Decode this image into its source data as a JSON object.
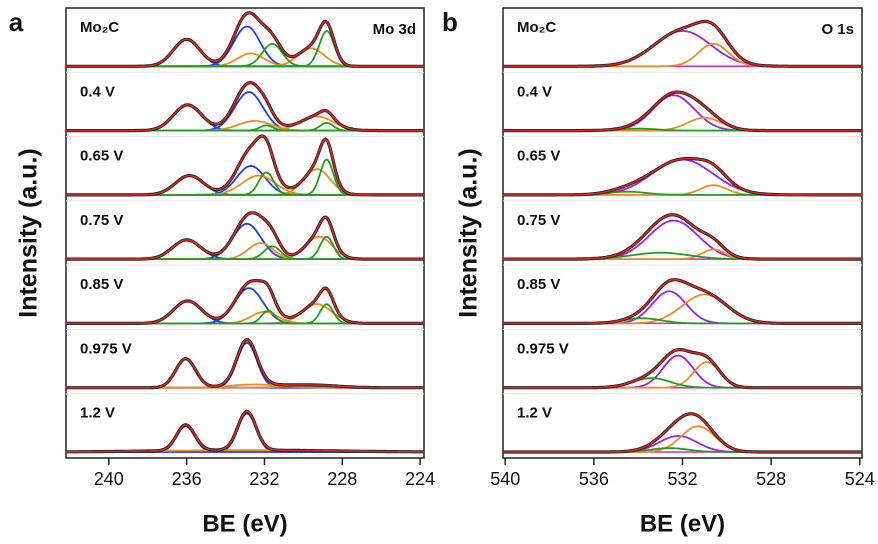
{
  "chart_data": [
    {
      "type": "xps",
      "panel_label": "a",
      "region": "Mo 3d",
      "x_label": "BE (eV)",
      "y_label": "Intensity (a.u.)",
      "xlim": [
        242.2,
        223.8
      ],
      "xticks": [
        240,
        236,
        232,
        228,
        224
      ],
      "spectra": [
        {
          "label": "Mo₂C",
          "peaks": [
            {
              "color": "#1f3fff",
              "center": 232.9,
              "fwhm": 1.6,
              "height": 0.62
            },
            {
              "color": "#1f3fff",
              "center": 236.0,
              "fwhm": 1.6,
              "height": 0.42
            },
            {
              "color": "#f08c1e",
              "center": 229.6,
              "fwhm": 1.6,
              "height": 0.28
            },
            {
              "color": "#f08c1e",
              "center": 232.7,
              "fwhm": 1.6,
              "height": 0.2
            },
            {
              "color": "#1ea01e",
              "center": 228.8,
              "fwhm": 0.9,
              "height": 0.55
            },
            {
              "color": "#1ea01e",
              "center": 231.6,
              "fwhm": 1.2,
              "height": 0.35
            }
          ]
        },
        {
          "label": "0.4 V",
          "peaks": [
            {
              "color": "#1f3fff",
              "center": 232.8,
              "fwhm": 1.7,
              "height": 0.6
            },
            {
              "color": "#1f3fff",
              "center": 235.95,
              "fwhm": 1.7,
              "height": 0.4
            },
            {
              "color": "#f08c1e",
              "center": 232.5,
              "fwhm": 2.0,
              "height": 0.15
            },
            {
              "color": "#f08c1e",
              "center": 229.3,
              "fwhm": 2.0,
              "height": 0.22
            },
            {
              "color": "#1ea01e",
              "center": 228.8,
              "fwhm": 0.8,
              "height": 0.12
            },
            {
              "color": "#1ea01e",
              "center": 231.9,
              "fwhm": 0.8,
              "height": 0.08
            }
          ]
        },
        {
          "label": "0.65 V",
          "peaks": [
            {
              "color": "#1f3fff",
              "center": 232.7,
              "fwhm": 1.7,
              "height": 0.45
            },
            {
              "color": "#1f3fff",
              "center": 235.85,
              "fwhm": 1.7,
              "height": 0.3
            },
            {
              "color": "#f08c1e",
              "center": 232.3,
              "fwhm": 2.0,
              "height": 0.3
            },
            {
              "color": "#f08c1e",
              "center": 229.3,
              "fwhm": 1.6,
              "height": 0.4
            },
            {
              "color": "#1ea01e",
              "center": 228.8,
              "fwhm": 0.8,
              "height": 0.55
            },
            {
              "color": "#1ea01e",
              "center": 231.9,
              "fwhm": 0.9,
              "height": 0.35
            }
          ]
        },
        {
          "label": "0.75 V",
          "peaks": [
            {
              "color": "#1f3fff",
              "center": 232.9,
              "fwhm": 1.7,
              "height": 0.55
            },
            {
              "color": "#1f3fff",
              "center": 236.0,
              "fwhm": 1.7,
              "height": 0.3
            },
            {
              "color": "#f08c1e",
              "center": 232.2,
              "fwhm": 1.5,
              "height": 0.25
            },
            {
              "color": "#f08c1e",
              "center": 229.2,
              "fwhm": 1.6,
              "height": 0.35
            },
            {
              "color": "#1ea01e",
              "center": 228.8,
              "fwhm": 0.8,
              "height": 0.35
            },
            {
              "color": "#1ea01e",
              "center": 231.6,
              "fwhm": 1.0,
              "height": 0.2
            }
          ]
        },
        {
          "label": "0.85 V",
          "peaks": [
            {
              "color": "#1f3fff",
              "center": 232.8,
              "fwhm": 1.7,
              "height": 0.55
            },
            {
              "color": "#1f3fff",
              "center": 235.95,
              "fwhm": 1.7,
              "height": 0.35
            },
            {
              "color": "#f08c1e",
              "center": 232.0,
              "fwhm": 1.6,
              "height": 0.18
            },
            {
              "color": "#f08c1e",
              "center": 229.3,
              "fwhm": 1.8,
              "height": 0.3
            },
            {
              "color": "#1ea01e",
              "center": 228.8,
              "fwhm": 0.8,
              "height": 0.3
            },
            {
              "color": "#1ea01e",
              "center": 231.8,
              "fwhm": 0.8,
              "height": 0.2
            }
          ]
        },
        {
          "label": "0.975 V",
          "peaks": [
            {
              "color": "#1f3fff",
              "center": 232.9,
              "fwhm": 1.2,
              "height": 0.7
            },
            {
              "color": "#1f3fff",
              "center": 236.05,
              "fwhm": 1.2,
              "height": 0.45
            },
            {
              "color": "#f08c1e",
              "center": 232.5,
              "fwhm": 3.0,
              "height": 0.05
            },
            {
              "color": "#f08c1e",
              "center": 229.5,
              "fwhm": 3.0,
              "height": 0.04
            }
          ]
        },
        {
          "label": "1.2 V",
          "peaks": [
            {
              "color": "#1f3fff",
              "center": 232.9,
              "fwhm": 1.1,
              "height": 0.6
            },
            {
              "color": "#1f3fff",
              "center": 236.05,
              "fwhm": 1.1,
              "height": 0.4
            },
            {
              "color": "#f08c1e",
              "center": 233.0,
              "fwhm": 10,
              "height": 0.03
            }
          ]
        }
      ]
    },
    {
      "type": "xps",
      "panel_label": "b",
      "region": "O 1s",
      "x_label": "BE (eV)",
      "y_label": "Intensity (a.u.)",
      "xlim": [
        540.1,
        523.9
      ],
      "xticks": [
        540,
        536,
        532,
        528,
        524
      ],
      "spectra": [
        {
          "label": "Mo₂C",
          "peaks": [
            {
              "color": "#a020f0",
              "center": 532.0,
              "fwhm": 3.0,
              "height": 0.55
            },
            {
              "color": "#f08c1e",
              "center": 530.6,
              "fwhm": 1.6,
              "height": 0.35
            }
          ]
        },
        {
          "label": "0.4 V",
          "peaks": [
            {
              "color": "#a020f0",
              "center": 532.4,
              "fwhm": 2.2,
              "height": 0.55
            },
            {
              "color": "#f08c1e",
              "center": 531.0,
              "fwhm": 1.8,
              "height": 0.2
            },
            {
              "color": "#1ea01e",
              "center": 534.0,
              "fwhm": 2.0,
              "height": 0.03
            }
          ]
        },
        {
          "label": "0.65 V",
          "peaks": [
            {
              "color": "#a020f0",
              "center": 532.0,
              "fwhm": 3.2,
              "height": 0.55
            },
            {
              "color": "#f08c1e",
              "center": 530.6,
              "fwhm": 1.4,
              "height": 0.15
            },
            {
              "color": "#1ea01e",
              "center": 534.5,
              "fwhm": 2.0,
              "height": 0.05
            }
          ]
        },
        {
          "label": "0.75 V",
          "peaks": [
            {
              "color": "#a020f0",
              "center": 532.4,
              "fwhm": 2.6,
              "height": 0.6
            },
            {
              "color": "#f08c1e",
              "center": 530.6,
              "fwhm": 1.2,
              "height": 0.15
            },
            {
              "color": "#1ea01e",
              "center": 533.0,
              "fwhm": 3.0,
              "height": 0.1
            }
          ]
        },
        {
          "label": "0.85 V",
          "peaks": [
            {
              "color": "#a020f0",
              "center": 532.6,
              "fwhm": 1.8,
              "height": 0.5
            },
            {
              "color": "#f08c1e",
              "center": 531.0,
              "fwhm": 2.4,
              "height": 0.45
            },
            {
              "color": "#1ea01e",
              "center": 533.8,
              "fwhm": 2.0,
              "height": 0.08
            }
          ]
        },
        {
          "label": "0.975 V",
          "peaks": [
            {
              "color": "#a020f0",
              "center": 532.2,
              "fwhm": 1.6,
              "height": 0.5
            },
            {
              "color": "#f08c1e",
              "center": 530.9,
              "fwhm": 1.4,
              "height": 0.4
            },
            {
              "color": "#1ea01e",
              "center": 533.4,
              "fwhm": 2.0,
              "height": 0.15
            }
          ]
        },
        {
          "label": "1.2 V",
          "peaks": [
            {
              "color": "#a020f0",
              "center": 532.2,
              "fwhm": 2.0,
              "height": 0.25
            },
            {
              "color": "#f08c1e",
              "center": 531.3,
              "fwhm": 1.8,
              "height": 0.4
            },
            {
              "color": "#1ea01e",
              "center": 532.6,
              "fwhm": 2.0,
              "height": 0.06
            }
          ]
        }
      ]
    }
  ]
}
